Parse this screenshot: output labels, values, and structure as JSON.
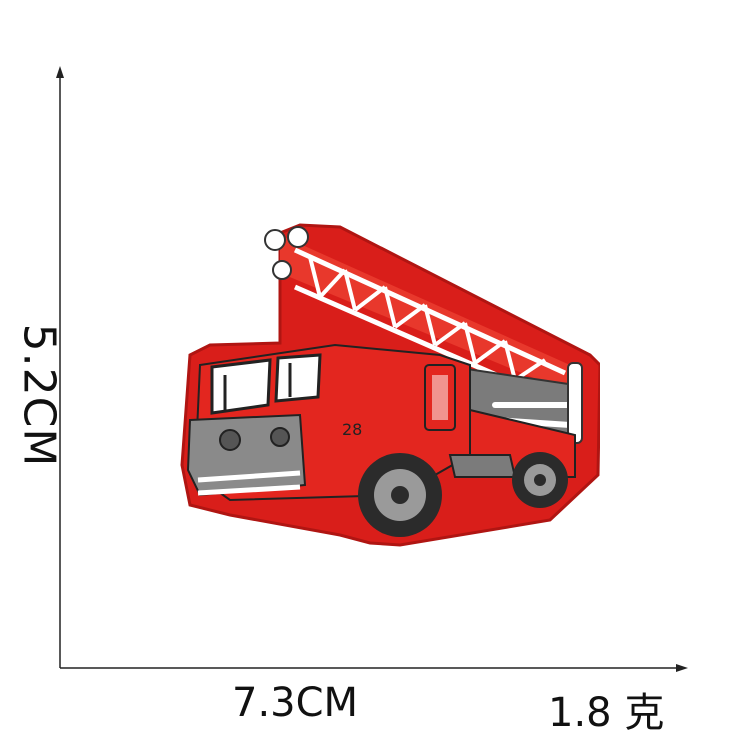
{
  "dimensions": {
    "height_label": "5.2CM",
    "width_label": "7.3CM",
    "weight_label": "1.8 克"
  },
  "patch": {
    "subject": "fire-truck-embroidered-patch",
    "number": "28",
    "colors": {
      "body": "#e3261f",
      "border": "#d91e1a",
      "ladder": "#e8382c",
      "ladder_rails": "#ffffff",
      "grey": "#7b7b7b",
      "dark": "#222222",
      "tires": "#2b2b2b"
    }
  }
}
